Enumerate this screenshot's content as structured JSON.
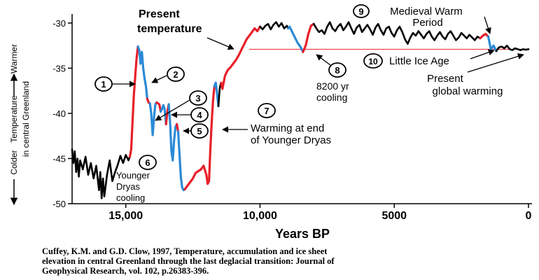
{
  "chart_data": {
    "type": "line",
    "xlabel": "Years BP",
    "ylabel_main": "Temperature",
    "ylabel_sub": "in central Greenland",
    "y_top_label": "Warmer",
    "y_bottom_label": "Colder",
    "xlim": [
      17000,
      0
    ],
    "ylim": [
      -50,
      -29
    ],
    "x_ticks": [
      {
        "value": 15000,
        "label": "15,000"
      },
      {
        "value": 10000,
        "label": "10,000"
      },
      {
        "value": 5000,
        "label": "5000"
      },
      {
        "value": 0,
        "label": "0"
      }
    ],
    "y_ticks": [
      {
        "value": -30,
        "label": "-30"
      },
      {
        "value": -35,
        "label": "-35"
      },
      {
        "value": -40,
        "label": "-40"
      },
      {
        "value": -45,
        "label": "-45"
      },
      {
        "value": -50,
        "label": "-50"
      }
    ],
    "series_colors": {
      "baseline": "#000000",
      "warming": "#e8202a",
      "cooling": "#2b8ad6",
      "present_line": "#e8202a"
    },
    "present_temperature": -32.9,
    "segments": [
      {
        "kind": "baseline",
        "points": [
          [
            17000,
            -44
          ],
          [
            16950,
            -45.5
          ],
          [
            16900,
            -44.2
          ],
          [
            16850,
            -46.5
          ],
          [
            16800,
            -45
          ],
          [
            16750,
            -47
          ],
          [
            16700,
            -45.2
          ],
          [
            16600,
            -46.2
          ],
          [
            16500,
            -44.8
          ],
          [
            16400,
            -46.8
          ],
          [
            16300,
            -45.5
          ],
          [
            16200,
            -47.2
          ],
          [
            16100,
            -45.8
          ],
          [
            16000,
            -48.5
          ],
          [
            15950,
            -46.5
          ],
          [
            15900,
            -49.4
          ],
          [
            15850,
            -47.2
          ],
          [
            15800,
            -49.2
          ],
          [
            15700,
            -46.8
          ],
          [
            15600,
            -45.2
          ],
          [
            15500,
            -47.5
          ],
          [
            15400,
            -46.5
          ],
          [
            15300,
            -45.7
          ],
          [
            15200,
            -44.7
          ],
          [
            15100,
            -45.5
          ],
          [
            15000,
            -44.6
          ],
          [
            14900,
            -45.2
          ],
          [
            14850,
            -44.8
          ]
        ]
      },
      {
        "kind": "warming",
        "points": [
          [
            14850,
            -44.8
          ],
          [
            14800,
            -44
          ],
          [
            14750,
            -41
          ],
          [
            14700,
            -38
          ],
          [
            14650,
            -36
          ],
          [
            14600,
            -34
          ],
          [
            14550,
            -32.6
          ]
        ]
      },
      {
        "kind": "cooling",
        "points": [
          [
            14550,
            -32.6
          ],
          [
            14500,
            -33
          ],
          [
            14450,
            -34.5
          ],
          [
            14400,
            -33.2
          ],
          [
            14350,
            -35
          ],
          [
            14300,
            -36.2
          ],
          [
            14250,
            -37
          ],
          [
            14200,
            -38.4
          ]
        ]
      },
      {
        "kind": "warming",
        "points": [
          [
            14200,
            -38.4
          ],
          [
            14150,
            -38.8
          ],
          [
            14100,
            -38.9
          ]
        ]
      },
      {
        "kind": "cooling",
        "points": [
          [
            14100,
            -38.9
          ],
          [
            14050,
            -40
          ],
          [
            14000,
            -42.4
          ],
          [
            13950,
            -40.5
          ],
          [
            13900,
            -39
          ],
          [
            13850,
            -38.8
          ]
        ]
      },
      {
        "kind": "warming",
        "points": [
          [
            13850,
            -38.8
          ],
          [
            13750,
            -39
          ],
          [
            13700,
            -39.8
          ]
        ]
      },
      {
        "kind": "cooling",
        "points": [
          [
            13700,
            -39.8
          ],
          [
            13650,
            -39.5
          ],
          [
            13600,
            -39.1
          ],
          [
            13550,
            -39.6
          ],
          [
            13500,
            -41.2
          ]
        ]
      },
      {
        "kind": "warming",
        "points": [
          [
            13500,
            -41.2
          ],
          [
            13450,
            -39.8
          ],
          [
            13400,
            -39
          ]
        ]
      },
      {
        "kind": "cooling",
        "points": [
          [
            13400,
            -39
          ],
          [
            13350,
            -41
          ],
          [
            13300,
            -44.2
          ],
          [
            13250,
            -45.2
          ],
          [
            13200,
            -43
          ],
          [
            13150,
            -41.5
          ],
          [
            13100,
            -41.2
          ]
        ]
      },
      {
        "kind": "warming",
        "points": [
          [
            13100,
            -41.2
          ],
          [
            13050,
            -42
          ]
        ]
      },
      {
        "kind": "cooling",
        "points": [
          [
            13050,
            -42
          ],
          [
            13000,
            -44.5
          ],
          [
            12950,
            -47
          ],
          [
            12900,
            -48.2
          ],
          [
            12850,
            -48.5
          ],
          [
            12800,
            -48.4
          ]
        ]
      },
      {
        "kind": "warming",
        "points": [
          [
            12800,
            -48.4
          ],
          [
            12700,
            -48
          ],
          [
            12600,
            -47.6
          ],
          [
            12500,
            -47.2
          ],
          [
            12400,
            -46.6
          ],
          [
            12300,
            -46.4
          ],
          [
            12200,
            -46.2
          ],
          [
            12100,
            -45.8
          ],
          [
            12000,
            -46.8
          ],
          [
            11950,
            -47.8
          ],
          [
            11900,
            -47.5
          ],
          [
            11850,
            -44
          ],
          [
            11800,
            -41
          ],
          [
            11750,
            -38.5
          ],
          [
            11700,
            -37
          ]
        ]
      },
      {
        "kind": "cooling",
        "points": [
          [
            11700,
            -37
          ],
          [
            11650,
            -36.6
          ],
          [
            11600,
            -37.8
          ],
          [
            11550,
            -39.2
          ]
        ]
      },
      {
        "kind": "baseline",
        "points": [
          [
            11550,
            -39.2
          ],
          [
            11500,
            -37.2
          ],
          [
            11450,
            -36.6
          ]
        ]
      },
      {
        "kind": "warming",
        "points": [
          [
            11450,
            -36.6
          ],
          [
            11400,
            -37.3
          ],
          [
            11350,
            -36.5
          ],
          [
            11300,
            -35.8
          ],
          [
            11200,
            -35.2
          ],
          [
            11100,
            -34.9
          ],
          [
            11000,
            -34.5
          ],
          [
            10900,
            -34.1
          ],
          [
            10800,
            -33.6
          ],
          [
            10700,
            -33
          ],
          [
            10600,
            -32.4
          ],
          [
            10500,
            -31.8
          ],
          [
            10400,
            -31.4
          ],
          [
            10300,
            -31
          ],
          [
            10200,
            -30.6
          ],
          [
            10100,
            -30.9
          ],
          [
            10000,
            -30.4
          ]
        ]
      },
      {
        "kind": "baseline",
        "points": [
          [
            10000,
            -30.4
          ],
          [
            9900,
            -30.7
          ],
          [
            9800,
            -30.3
          ],
          [
            9700,
            -30.1
          ],
          [
            9600,
            -30.7
          ],
          [
            9500,
            -30.2
          ],
          [
            9400,
            -29.9
          ],
          [
            9300,
            -30.4
          ],
          [
            9200,
            -30
          ],
          [
            9100,
            -30.6
          ],
          [
            9000,
            -30.3
          ],
          [
            8950,
            -30.6
          ]
        ]
      },
      {
        "kind": "cooling",
        "points": [
          [
            8950,
            -30.6
          ],
          [
            8900,
            -30.4
          ],
          [
            8800,
            -31
          ],
          [
            8700,
            -31.6
          ],
          [
            8600,
            -32.2
          ],
          [
            8500,
            -32.6
          ],
          [
            8400,
            -33.2
          ]
        ]
      },
      {
        "kind": "warming",
        "points": [
          [
            8400,
            -33.2
          ],
          [
            8300,
            -32.5
          ],
          [
            8200,
            -31.2
          ],
          [
            8100,
            -30.3
          ],
          [
            8000,
            -30.1
          ]
        ]
      },
      {
        "kind": "baseline",
        "points": [
          [
            8000,
            -30.1
          ],
          [
            7900,
            -30.6
          ],
          [
            7800,
            -31
          ],
          [
            7700,
            -30.8
          ],
          [
            7600,
            -31.2
          ],
          [
            7500,
            -30.4
          ],
          [
            7400,
            -29.9
          ],
          [
            7300,
            -30.6
          ],
          [
            7200,
            -30.9
          ],
          [
            7100,
            -30.4
          ],
          [
            7000,
            -30.1
          ],
          [
            6900,
            -30.8
          ],
          [
            6800,
            -30.4
          ],
          [
            6700,
            -29.9
          ],
          [
            6600,
            -30.6
          ],
          [
            6500,
            -31.2
          ],
          [
            6400,
            -30.5
          ],
          [
            6300,
            -30.2
          ],
          [
            6200,
            -31
          ],
          [
            6100,
            -30.6
          ],
          [
            6000,
            -30.2
          ],
          [
            5900,
            -30.7
          ],
          [
            5800,
            -31.3
          ],
          [
            5700,
            -30.5
          ],
          [
            5600,
            -30.1
          ],
          [
            5500,
            -30.8
          ],
          [
            5400,
            -31.3
          ],
          [
            5300,
            -30.6
          ],
          [
            5200,
            -30.4
          ],
          [
            5100,
            -31.1
          ],
          [
            5000,
            -31.5
          ],
          [
            4900,
            -30.8
          ],
          [
            4800,
            -30.4
          ],
          [
            4700,
            -31
          ],
          [
            4600,
            -31.8
          ],
          [
            4500,
            -32.3
          ],
          [
            4400,
            -31.6
          ],
          [
            4300,
            -31.1
          ],
          [
            4200,
            -31.4
          ],
          [
            4100,
            -30.9
          ],
          [
            4000,
            -31.3
          ],
          [
            3900,
            -31.7
          ],
          [
            3800,
            -31.2
          ],
          [
            3700,
            -30.9
          ],
          [
            3600,
            -31.5
          ],
          [
            3500,
            -31.9
          ],
          [
            3400,
            -31.4
          ],
          [
            3300,
            -31
          ],
          [
            3200,
            -31.5
          ],
          [
            3100,
            -31.8
          ],
          [
            3000,
            -31.2
          ],
          [
            2900,
            -30.9
          ],
          [
            2800,
            -31.4
          ],
          [
            2700,
            -31.9
          ],
          [
            2600,
            -31.6
          ],
          [
            2500,
            -31.1
          ],
          [
            2400,
            -31.4
          ],
          [
            2300,
            -31.7
          ],
          [
            2200,
            -31.3
          ],
          [
            2100,
            -31.6
          ],
          [
            2000,
            -31.9
          ],
          [
            1900,
            -31.5
          ],
          [
            1800,
            -31.7
          ]
        ]
      },
      {
        "kind": "warming",
        "points": [
          [
            1800,
            -31.7
          ],
          [
            1700,
            -31.4
          ],
          [
            1600,
            -31.2
          ],
          [
            1500,
            -31.5
          ]
        ]
      },
      {
        "kind": "cooling",
        "points": [
          [
            1500,
            -31.5
          ],
          [
            1450,
            -32.2
          ],
          [
            1400,
            -32.9
          ],
          [
            1300,
            -32.5
          ],
          [
            1200,
            -33.1
          ]
        ]
      },
      {
        "kind": "baseline",
        "points": [
          [
            1200,
            -33.1
          ],
          [
            1100,
            -32.7
          ],
          [
            1000,
            -32.6
          ],
          [
            900,
            -32.8
          ],
          [
            800,
            -32.5
          ],
          [
            700,
            -32.9
          ],
          [
            600,
            -33
          ],
          [
            500,
            -32.8
          ],
          [
            400,
            -32.9
          ],
          [
            300,
            -33
          ],
          [
            200,
            -32.9
          ],
          [
            100,
            -32.95
          ],
          [
            0,
            -32.9
          ]
        ]
      }
    ],
    "annotations": [
      {
        "id": "present-temperature",
        "text": [
          "Present",
          "temperature"
        ]
      },
      {
        "id": "1",
        "number": "1"
      },
      {
        "id": "2",
        "number": "2"
      },
      {
        "id": "3",
        "number": "3"
      },
      {
        "id": "4",
        "number": "4"
      },
      {
        "id": "5",
        "number": "5"
      },
      {
        "id": "6",
        "number": "6",
        "text": [
          "Younger",
          "Dryas",
          "cooling"
        ]
      },
      {
        "id": "7",
        "number": "7",
        "text": [
          "Warming at end",
          "of Younger Dryas"
        ]
      },
      {
        "id": "8",
        "number": "8",
        "text": [
          "8200 yr",
          "cooling"
        ]
      },
      {
        "id": "9",
        "number": "9",
        "text": [
          "Medieval Warm",
          "Period"
        ]
      },
      {
        "id": "10",
        "number": "10",
        "text": [
          "Little Ice Age"
        ]
      },
      {
        "id": "global",
        "text": [
          "Present",
          "global warming"
        ]
      }
    ]
  },
  "caption": [
    "Cuffey, K.M. and G.D. Clow, 1997, Temperature, accumulation and ice sheet",
    "elevation in central Greenland through the last deglacial transition: Journal of",
    "Geophysical Research, vol. 102, p.26383-396."
  ]
}
